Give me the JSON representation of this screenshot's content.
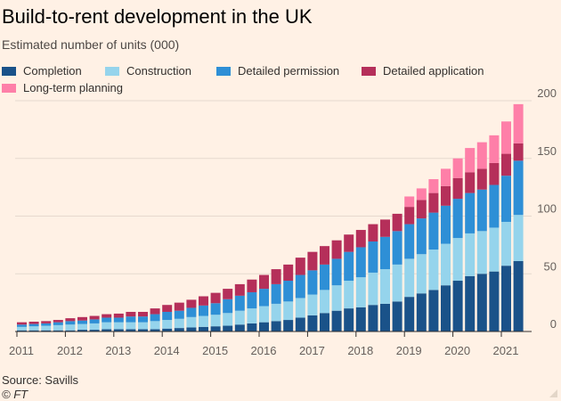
{
  "header": {
    "title": "Build-to-rent development in the UK",
    "subtitle": "Estimated number of units (000)"
  },
  "footer": {
    "source": "Source: Savills",
    "credit": "© FT"
  },
  "chart_data": {
    "type": "bar",
    "stacked": true,
    "title": "Build-to-rent development in the UK",
    "subtitle": "Estimated number of units (000)",
    "ylim": [
      0,
      200
    ],
    "yticks": [
      0,
      50,
      100,
      150,
      200
    ],
    "y_axis_side": "right",
    "grid": true,
    "legend": "top",
    "x_tick_labels": [
      "2011",
      "2012",
      "2013",
      "2014",
      "2015",
      "2016",
      "2017",
      "2018",
      "2019",
      "2020",
      "2021"
    ],
    "categories": [
      "2011 Q1",
      "2011 Q2",
      "2011 Q3",
      "2011 Q4",
      "2012 Q1",
      "2012 Q2",
      "2012 Q3",
      "2012 Q4",
      "2013 Q1",
      "2013 Q2",
      "2013 Q3",
      "2013 Q4",
      "2014 Q1",
      "2014 Q2",
      "2014 Q3",
      "2014 Q4",
      "2015 Q1",
      "2015 Q2",
      "2015 Q3",
      "2015 Q4",
      "2016 Q1",
      "2016 Q2",
      "2016 Q3",
      "2016 Q4",
      "2017 Q1",
      "2017 Q2",
      "2017 Q3",
      "2017 Q4",
      "2018 Q1",
      "2018 Q2",
      "2018 Q3",
      "2018 Q4",
      "2019 Q1",
      "2019 Q2",
      "2019 Q3",
      "2019 Q4",
      "2020 Q1",
      "2020 Q2",
      "2020 Q3",
      "2020 Q4",
      "2021 Q1",
      "2021 Q2"
    ],
    "series": [
      {
        "name": "Completion",
        "color": "#1a5289",
        "values": [
          1,
          1,
          1,
          1,
          1,
          1.5,
          1.5,
          2,
          2,
          2,
          2,
          2,
          2.5,
          3,
          3.5,
          4,
          4.5,
          5,
          6,
          7,
          8,
          9,
          10,
          12,
          14,
          16,
          18,
          20,
          21,
          23,
          24,
          26,
          30,
          33,
          36,
          40,
          44,
          48,
          50,
          52,
          57,
          61
        ]
      },
      {
        "name": "Construction",
        "color": "#95d4ec",
        "values": [
          3,
          3.5,
          4,
          4.5,
          5,
          5,
          5.5,
          6,
          6,
          6,
          6,
          7,
          7.5,
          8,
          9,
          9.5,
          10,
          11,
          12,
          13,
          14,
          15,
          16,
          17,
          18,
          20,
          22,
          24,
          26,
          28,
          30,
          32,
          33,
          34,
          35,
          36,
          37,
          37,
          37,
          38,
          38,
          40
        ]
      },
      {
        "name": "Detailed permission",
        "color": "#2e8fd6",
        "values": [
          2,
          2,
          2,
          2.5,
          3,
          3,
          3.5,
          4,
          4,
          5,
          5,
          6,
          7,
          7,
          8,
          9,
          10,
          12,
          13,
          14,
          15,
          17,
          18,
          20,
          21,
          22,
          23,
          25,
          26,
          27,
          28,
          29,
          30,
          31,
          32,
          33,
          34,
          35,
          36,
          37,
          40,
          47
        ]
      },
      {
        "name": "Detailed application",
        "color": "#b52f5a",
        "values": [
          2,
          2,
          2,
          2,
          2.5,
          3,
          3,
          3,
          3.5,
          4,
          4,
          5,
          6,
          7,
          7,
          8,
          9,
          9,
          10,
          11,
          12,
          13,
          14,
          15,
          16,
          16,
          16,
          15,
          15,
          15,
          15,
          15,
          15,
          16,
          17,
          17,
          18,
          18,
          18,
          19,
          19,
          15
        ]
      },
      {
        "name": "Long-term planning",
        "color": "#fe7fa8",
        "values": [
          0,
          0,
          0,
          0,
          0,
          0,
          0,
          0,
          0,
          0,
          0,
          0,
          0,
          0,
          0,
          0,
          0,
          0,
          0,
          0,
          0,
          0,
          0,
          0,
          0,
          0,
          0,
          0,
          0,
          0,
          0,
          0,
          9,
          10,
          12,
          15,
          17,
          21,
          23,
          24,
          28,
          34
        ]
      }
    ]
  }
}
